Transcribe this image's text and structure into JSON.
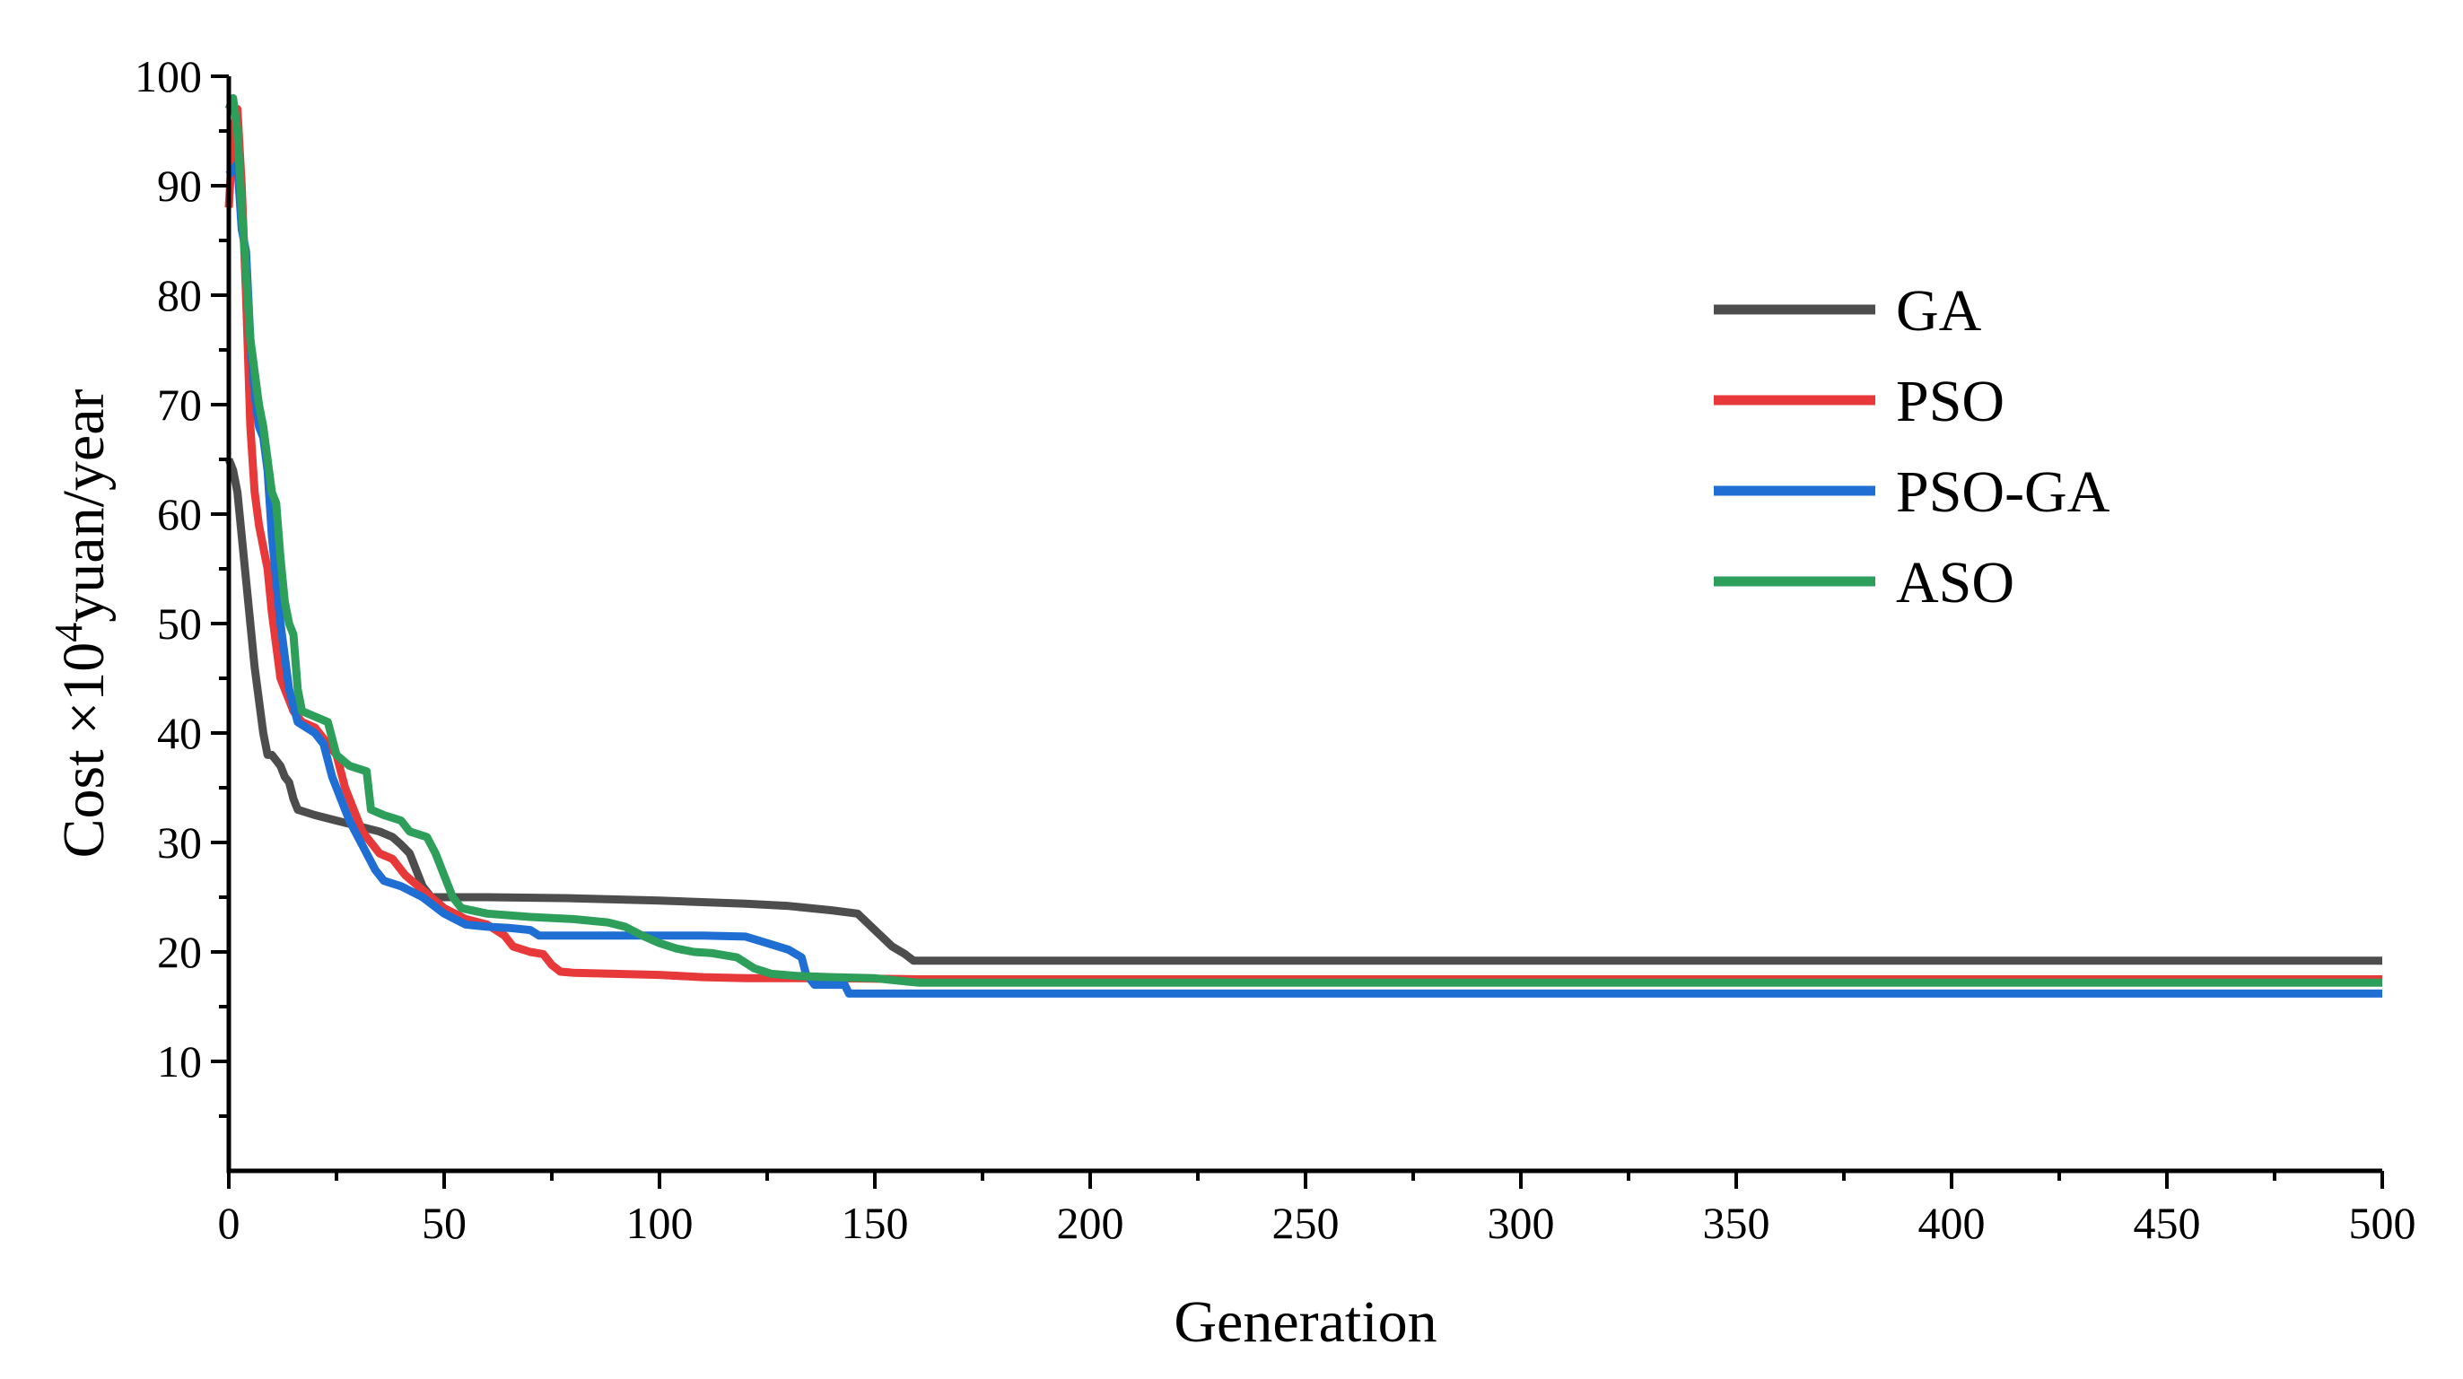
{
  "chart_data": {
    "type": "line",
    "xlabel": "Generation",
    "ylabel": {
      "prefix": "Cost ×10",
      "sup": "4",
      "suffix": "yuan/year"
    },
    "xlim": [
      0,
      500
    ],
    "ylim": [
      0,
      100
    ],
    "xticks": [
      0,
      50,
      100,
      150,
      200,
      250,
      300,
      350,
      400,
      450,
      500
    ],
    "yticks": [
      10,
      20,
      30,
      40,
      50,
      60,
      70,
      80,
      90,
      100
    ],
    "grid": false,
    "legend_position": "right",
    "series": [
      {
        "name": "GA",
        "color": "#4d4d4d",
        "points": [
          [
            0,
            65
          ],
          [
            1,
            64
          ],
          [
            2,
            62
          ],
          [
            3,
            58
          ],
          [
            4,
            54
          ],
          [
            5,
            50
          ],
          [
            6,
            46
          ],
          [
            7,
            43
          ],
          [
            8,
            40
          ],
          [
            9,
            38
          ],
          [
            10,
            38
          ],
          [
            12,
            37
          ],
          [
            13,
            36
          ],
          [
            14,
            35.5
          ],
          [
            15,
            34
          ],
          [
            16,
            33
          ],
          [
            20,
            32.5
          ],
          [
            25,
            32
          ],
          [
            30,
            31.5
          ],
          [
            35,
            31
          ],
          [
            38,
            30.5
          ],
          [
            40,
            29.8
          ],
          [
            42,
            29
          ],
          [
            44,
            27
          ],
          [
            45,
            26
          ],
          [
            47,
            25
          ],
          [
            60,
            25
          ],
          [
            80,
            24.9
          ],
          [
            100,
            24.7
          ],
          [
            120,
            24.4
          ],
          [
            130,
            24.2
          ],
          [
            140,
            23.8
          ],
          [
            146,
            23.5
          ],
          [
            150,
            22
          ],
          [
            154,
            20.5
          ],
          [
            157,
            19.8
          ],
          [
            159,
            19.2
          ],
          [
            500,
            19.2
          ]
        ]
      },
      {
        "name": "PSO",
        "color": "#e8393a",
        "points": [
          [
            0,
            88
          ],
          [
            1,
            95
          ],
          [
            2,
            97
          ],
          [
            3,
            90
          ],
          [
            4,
            80
          ],
          [
            5,
            68
          ],
          [
            6,
            62
          ],
          [
            7,
            59
          ],
          [
            8,
            57
          ],
          [
            9,
            55
          ],
          [
            10,
            51
          ],
          [
            11,
            48
          ],
          [
            12,
            45
          ],
          [
            13,
            44
          ],
          [
            14,
            43
          ],
          [
            15,
            42
          ],
          [
            17,
            41
          ],
          [
            20,
            40.5
          ],
          [
            25,
            38
          ],
          [
            27,
            35
          ],
          [
            29,
            33
          ],
          [
            31,
            31
          ],
          [
            33,
            30
          ],
          [
            35,
            29
          ],
          [
            38,
            28.5
          ],
          [
            41,
            27
          ],
          [
            44,
            26
          ],
          [
            47,
            25
          ],
          [
            50,
            24
          ],
          [
            55,
            23
          ],
          [
            60,
            22.5
          ],
          [
            64,
            21.5
          ],
          [
            66,
            20.5
          ],
          [
            70,
            20
          ],
          [
            73,
            19.8
          ],
          [
            75,
            18.8
          ],
          [
            77,
            18.2
          ],
          [
            80,
            18.1
          ],
          [
            100,
            17.9
          ],
          [
            110,
            17.7
          ],
          [
            120,
            17.6
          ],
          [
            140,
            17.6
          ],
          [
            160,
            17.5
          ],
          [
            500,
            17.5
          ]
        ]
      },
      {
        "name": "PSO-GA",
        "color": "#1f6ed4",
        "points": [
          [
            0,
            91
          ],
          [
            2,
            92
          ],
          [
            3,
            86
          ],
          [
            4,
            84
          ],
          [
            5,
            76
          ],
          [
            6,
            71
          ],
          [
            7,
            68
          ],
          [
            8,
            67
          ],
          [
            9,
            64
          ],
          [
            10,
            58
          ],
          [
            11,
            54
          ],
          [
            12,
            50
          ],
          [
            13,
            47
          ],
          [
            14,
            44
          ],
          [
            16,
            41
          ],
          [
            18,
            40.5
          ],
          [
            20,
            40
          ],
          [
            22,
            39
          ],
          [
            24,
            36
          ],
          [
            26,
            34
          ],
          [
            28,
            32
          ],
          [
            30,
            30.5
          ],
          [
            32,
            29
          ],
          [
            34,
            27.5
          ],
          [
            36,
            26.5
          ],
          [
            40,
            26
          ],
          [
            45,
            25
          ],
          [
            50,
            23.5
          ],
          [
            55,
            22.5
          ],
          [
            60,
            22.3
          ],
          [
            65,
            22.2
          ],
          [
            70,
            22
          ],
          [
            72,
            21.5
          ],
          [
            80,
            21.5
          ],
          [
            90,
            21.5
          ],
          [
            110,
            21.5
          ],
          [
            120,
            21.4
          ],
          [
            125,
            20.8
          ],
          [
            130,
            20.2
          ],
          [
            133,
            19.5
          ],
          [
            134,
            18
          ],
          [
            136,
            17
          ],
          [
            140,
            17
          ],
          [
            143,
            17
          ],
          [
            144,
            16.2
          ],
          [
            500,
            16.2
          ]
        ]
      },
      {
        "name": "ASO",
        "color": "#2e9e5b",
        "points": [
          [
            0,
            97
          ],
          [
            1,
            98
          ],
          [
            2,
            95
          ],
          [
            3,
            88
          ],
          [
            4,
            82
          ],
          [
            5,
            76
          ],
          [
            6,
            73
          ],
          [
            7,
            70
          ],
          [
            8,
            68
          ],
          [
            9,
            65
          ],
          [
            10,
            62
          ],
          [
            11,
            61
          ],
          [
            12,
            56
          ],
          [
            13,
            52
          ],
          [
            14,
            50
          ],
          [
            15,
            49
          ],
          [
            16,
            44
          ],
          [
            17,
            42
          ],
          [
            20,
            41.5
          ],
          [
            23,
            41
          ],
          [
            25,
            38
          ],
          [
            28,
            37
          ],
          [
            32,
            36.5
          ],
          [
            33,
            33
          ],
          [
            36,
            32.5
          ],
          [
            40,
            32
          ],
          [
            42,
            31
          ],
          [
            46,
            30.5
          ],
          [
            48,
            29
          ],
          [
            50,
            27
          ],
          [
            52,
            25
          ],
          [
            54,
            24
          ],
          [
            60,
            23.5
          ],
          [
            70,
            23.2
          ],
          [
            80,
            23
          ],
          [
            88,
            22.7
          ],
          [
            92,
            22.3
          ],
          [
            96,
            21.5
          ],
          [
            100,
            20.8
          ],
          [
            104,
            20.3
          ],
          [
            108,
            20
          ],
          [
            112,
            19.9
          ],
          [
            118,
            19.5
          ],
          [
            122,
            18.5
          ],
          [
            126,
            18
          ],
          [
            132,
            17.8
          ],
          [
            140,
            17.7
          ],
          [
            150,
            17.6
          ],
          [
            160,
            17.2
          ],
          [
            500,
            17.2
          ]
        ]
      }
    ]
  }
}
